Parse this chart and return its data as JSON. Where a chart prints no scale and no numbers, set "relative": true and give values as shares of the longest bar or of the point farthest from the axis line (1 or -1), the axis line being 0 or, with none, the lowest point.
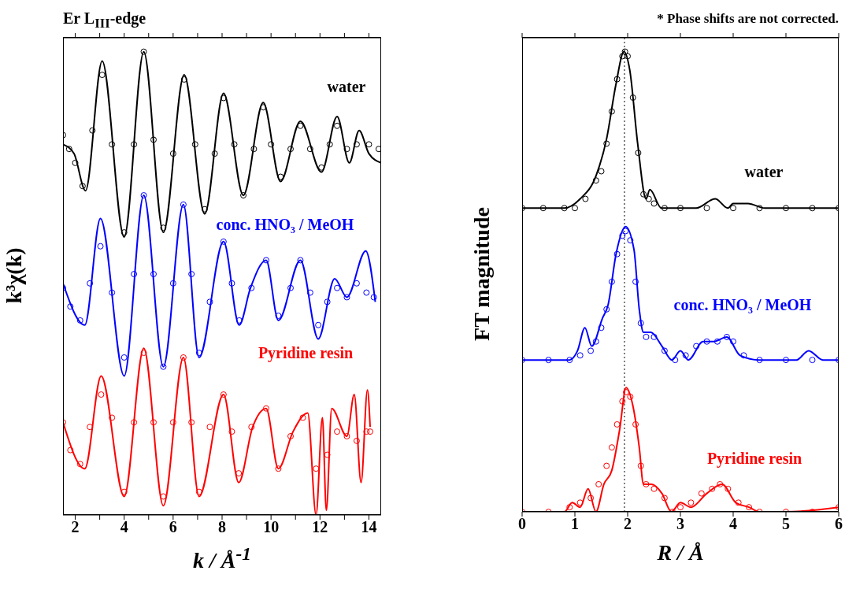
{
  "chart_data": [
    {
      "type": "line",
      "title": "Er L$_{III}$-edge",
      "xlabel": "k / Å$^{-1}$",
      "ylabel": "k³χ(k)",
      "relative": true,
      "xlim": [
        1.5,
        14.5
      ],
      "xticks": [
        2,
        {
          "value": 3,
          "label": null
        },
        4,
        {
          "value": 5,
          "label": null
        },
        6,
        {
          "value": 7,
          "label": null
        },
        8,
        {
          "value": 9,
          "label": null
        },
        10,
        {
          "value": 11,
          "label": null
        },
        12,
        {
          "value": 13,
          "label": null
        },
        14
      ],
      "series": [
        {
          "type": "scatter",
          "marker": "circle",
          "color": "#000000",
          "x": [
            1.5,
            1.75,
            2.0,
            2.3,
            2.7,
            3.1,
            3.5,
            4.0,
            4.4,
            4.8,
            5.2,
            5.6,
            6.0,
            6.45,
            6.9,
            7.29,
            7.7,
            8.06,
            8.5,
            8.87,
            9.3,
            9.68,
            10.0,
            10.39,
            10.8,
            11.2,
            11.6,
            12.06,
            12.4,
            12.7,
            13.1,
            13.5,
            14.0,
            14.4
          ],
          "values": [
            0.82,
            0.79,
            0.76,
            0.71,
            0.83,
            0.95,
            0.8,
            0.61,
            0.8,
            1.0,
            0.81,
            0.62,
            0.78,
            0.94,
            0.8,
            0.66,
            0.78,
            0.9,
            0.8,
            0.69,
            0.79,
            0.88,
            0.8,
            0.73,
            0.79,
            0.84,
            0.79,
            0.75,
            0.8,
            0.84,
            0.79,
            0.8,
            0.8,
            0.79
          ]
        },
        {
          "name": "water",
          "color": "#000000",
          "x": [
            1.5,
            1.95,
            2.42,
            3.1,
            4.0,
            4.8,
            5.6,
            6.45,
            7.29,
            8.06,
            8.87,
            9.68,
            10.39,
            11.2,
            12.06,
            12.7,
            13.2,
            13.6,
            14.0,
            14.5
          ],
          "values": [
            0.8,
            0.78,
            0.7,
            0.98,
            0.6,
            1.0,
            0.61,
            0.95,
            0.65,
            0.91,
            0.69,
            0.89,
            0.72,
            0.85,
            0.74,
            0.86,
            0.76,
            0.83,
            0.78,
            0.76
          ]
        },
        {
          "type": "scatter",
          "marker": "circle",
          "color": "#0000ff",
          "x": [
            1.5,
            1.8,
            2.2,
            2.6,
            3.03,
            3.5,
            4.0,
            4.4,
            4.8,
            5.2,
            5.6,
            6.0,
            6.42,
            6.75,
            7.06,
            7.5,
            8.06,
            8.4,
            8.7,
            9.2,
            9.8,
            10.3,
            10.8,
            11.2,
            11.6,
            11.93,
            12.3,
            12.7,
            13.1,
            13.5,
            13.9,
            14.2
          ],
          "values": [
            0.49,
            0.45,
            0.42,
            0.5,
            0.58,
            0.48,
            0.34,
            0.52,
            0.69,
            0.52,
            0.32,
            0.5,
            0.67,
            0.52,
            0.35,
            0.46,
            0.59,
            0.5,
            0.42,
            0.49,
            0.55,
            0.43,
            0.49,
            0.55,
            0.48,
            0.41,
            0.46,
            0.49,
            0.47,
            0.5,
            0.48,
            0.47
          ]
        },
        {
          "name": "conc. HNO₃ / MeOH",
          "color": "#0000ff",
          "x": [
            1.5,
            2.39,
            3.03,
            4.0,
            4.8,
            5.6,
            6.42,
            7.06,
            8.06,
            8.7,
            9.16,
            9.8,
            10.3,
            11.2,
            11.93,
            12.6,
            13.1,
            13.87,
            14.26
          ],
          "values": [
            0.5,
            0.41,
            0.64,
            0.3,
            0.69,
            0.32,
            0.67,
            0.34,
            0.59,
            0.41,
            0.49,
            0.55,
            0.42,
            0.55,
            0.38,
            0.51,
            0.47,
            0.57,
            0.46
          ]
        },
        {
          "type": "scatter",
          "marker": "circle",
          "color": "#ff0000",
          "x": [
            1.5,
            1.8,
            2.2,
            2.6,
            3.06,
            3.5,
            4.0,
            4.4,
            4.8,
            5.2,
            5.6,
            6.0,
            6.42,
            6.75,
            7.06,
            7.5,
            8.06,
            8.4,
            8.68,
            9.2,
            9.8,
            10.3,
            10.8,
            11.3,
            11.84,
            12.3,
            12.7,
            13.1,
            13.5,
            13.9,
            14.05
          ],
          "values": [
            0.2,
            0.14,
            0.11,
            0.19,
            0.26,
            0.21,
            0.05,
            0.2,
            0.35,
            0.2,
            0.04,
            0.2,
            0.34,
            0.2,
            0.05,
            0.19,
            0.26,
            0.18,
            0.09,
            0.19,
            0.23,
            0.1,
            0.17,
            0.21,
            0.1,
            0.13,
            0.18,
            0.17,
            0.16,
            0.18,
            0.18
          ]
        },
        {
          "name": "Pyridine resin",
          "color": "#ff0000",
          "x": [
            1.5,
            2.39,
            3.06,
            4.0,
            4.8,
            5.6,
            6.42,
            7.06,
            8.06,
            8.68,
            9.25,
            9.8,
            10.3,
            10.9,
            11.5,
            11.84,
            12.1,
            12.26,
            12.48,
            13.1,
            13.4,
            13.68,
            13.94,
            14.05
          ],
          "values": [
            0.2,
            0.1,
            0.3,
            0.04,
            0.36,
            0.02,
            0.34,
            0.04,
            0.26,
            0.07,
            0.19,
            0.23,
            0.1,
            0.18,
            0.22,
            0.0,
            0.21,
            0.01,
            0.23,
            0.17,
            0.26,
            0.07,
            0.27,
            0.19
          ]
        }
      ]
    },
    {
      "type": "line",
      "xlabel": "R / Å",
      "ylabel": "FT magnitude",
      "relative": true,
      "xlim": [
        0,
        6
      ],
      "xticks": [
        0,
        1,
        2,
        3,
        4,
        5,
        6
      ],
      "series": [
        {
          "type": "scatter",
          "marker": "circle",
          "color": "#000000",
          "x": [
            0,
            0.4,
            0.8,
            1.0,
            1.2,
            1.4,
            1.5,
            1.6,
            1.7,
            1.8,
            1.9,
            1.95,
            2.0,
            2.1,
            2.2,
            2.3,
            2.4,
            2.5,
            2.7,
            3.0,
            3.5,
            4.0,
            4.5,
            5.0,
            5.5,
            6.0
          ],
          "values": [
            0.66,
            0.66,
            0.66,
            0.66,
            0.68,
            0.72,
            0.74,
            0.8,
            0.87,
            0.94,
            0.99,
            1.0,
            0.99,
            0.9,
            0.78,
            0.69,
            0.68,
            0.67,
            0.66,
            0.66,
            0.66,
            0.66,
            0.66,
            0.66,
            0.66,
            0.66
          ]
        },
        {
          "name": "water",
          "color": "#000000",
          "x": [
            0,
            0.8,
            1.1,
            1.4,
            1.6,
            1.78,
            1.93,
            2.04,
            2.19,
            2.35,
            2.42,
            2.64,
            3.3,
            3.66,
            3.9,
            4.0,
            4.28,
            4.6,
            5.0,
            6.0
          ],
          "values": [
            0.66,
            0.66,
            0.68,
            0.73,
            0.81,
            0.93,
            1.0,
            0.96,
            0.8,
            0.68,
            0.7,
            0.66,
            0.66,
            0.68,
            0.66,
            0.67,
            0.67,
            0.66,
            0.66,
            0.66
          ]
        },
        {
          "type": "scatter",
          "marker": "circle",
          "color": "#0000ff",
          "x": [
            0,
            0.5,
            0.9,
            1.1,
            1.3,
            1.4,
            1.5,
            1.6,
            1.7,
            1.8,
            1.9,
            1.96,
            2.05,
            2.15,
            2.25,
            2.35,
            2.5,
            2.7,
            2.9,
            3.1,
            3.3,
            3.5,
            3.7,
            3.88,
            4.0,
            4.2,
            4.5,
            5.0,
            5.5,
            6.0
          ],
          "values": [
            0.33,
            0.33,
            0.33,
            0.34,
            0.35,
            0.37,
            0.4,
            0.44,
            0.5,
            0.56,
            0.6,
            0.61,
            0.59,
            0.5,
            0.41,
            0.38,
            0.38,
            0.35,
            0.33,
            0.34,
            0.36,
            0.37,
            0.37,
            0.38,
            0.37,
            0.34,
            0.33,
            0.33,
            0.33,
            0.33
          ]
        },
        {
          "name": "conc. HNO₃ / MeOH",
          "color": "#0000ff",
          "x": [
            0,
            0.9,
            1.05,
            1.19,
            1.32,
            1.52,
            1.63,
            1.78,
            1.96,
            2.12,
            2.22,
            2.3,
            2.44,
            2.65,
            2.84,
            3.0,
            3.15,
            3.43,
            3.63,
            3.88,
            4.13,
            4.5,
            5.2,
            5.43,
            5.7,
            6.0
          ],
          "values": [
            0.33,
            0.33,
            0.35,
            0.4,
            0.36,
            0.42,
            0.45,
            0.56,
            0.62,
            0.57,
            0.44,
            0.39,
            0.39,
            0.36,
            0.33,
            0.35,
            0.33,
            0.37,
            0.37,
            0.38,
            0.34,
            0.33,
            0.33,
            0.35,
            0.33,
            0.33
          ]
        },
        {
          "type": "scatter",
          "marker": "circle",
          "color": "#ff0000",
          "x": [
            0,
            0.5,
            0.9,
            1.1,
            1.3,
            1.45,
            1.6,
            1.7,
            1.8,
            1.9,
            1.97,
            2.05,
            2.15,
            2.25,
            2.35,
            2.5,
            2.7,
            2.85,
            3.0,
            3.2,
            3.4,
            3.6,
            3.75,
            3.9,
            4.1,
            4.3,
            4.5,
            5.0,
            5.5,
            6.0
          ],
          "values": [
            0.0,
            0.0,
            0.01,
            0.02,
            0.03,
            0.06,
            0.1,
            0.14,
            0.19,
            0.24,
            0.26,
            0.25,
            0.19,
            0.1,
            0.06,
            0.05,
            0.03,
            0.0,
            0.01,
            0.02,
            0.04,
            0.05,
            0.06,
            0.05,
            0.02,
            0.01,
            0.0,
            0.0,
            0.0,
            0.01
          ]
        },
        {
          "name": "Pyridine resin",
          "color": "#ff0000",
          "x": [
            0,
            0.8,
            0.95,
            1.1,
            1.25,
            1.4,
            1.55,
            1.7,
            1.85,
            1.97,
            2.1,
            2.22,
            2.3,
            2.45,
            2.65,
            2.83,
            3.0,
            3.2,
            3.5,
            3.79,
            4.05,
            4.3,
            4.5,
            5.0,
            6.0
          ],
          "values": [
            0.0,
            0.0,
            0.02,
            0.01,
            0.05,
            0.0,
            0.06,
            0.09,
            0.18,
            0.27,
            0.23,
            0.14,
            0.06,
            0.06,
            0.04,
            0.0,
            0.02,
            0.01,
            0.04,
            0.06,
            0.02,
            0.01,
            0.0,
            0.0,
            0.01
          ]
        }
      ],
      "ref_lines": [
        {
          "axis": "x",
          "value": 1.94,
          "line_style": "dotted"
        }
      ],
      "annotations": [
        "* Phase shifts are not corrected."
      ]
    }
  ]
}
